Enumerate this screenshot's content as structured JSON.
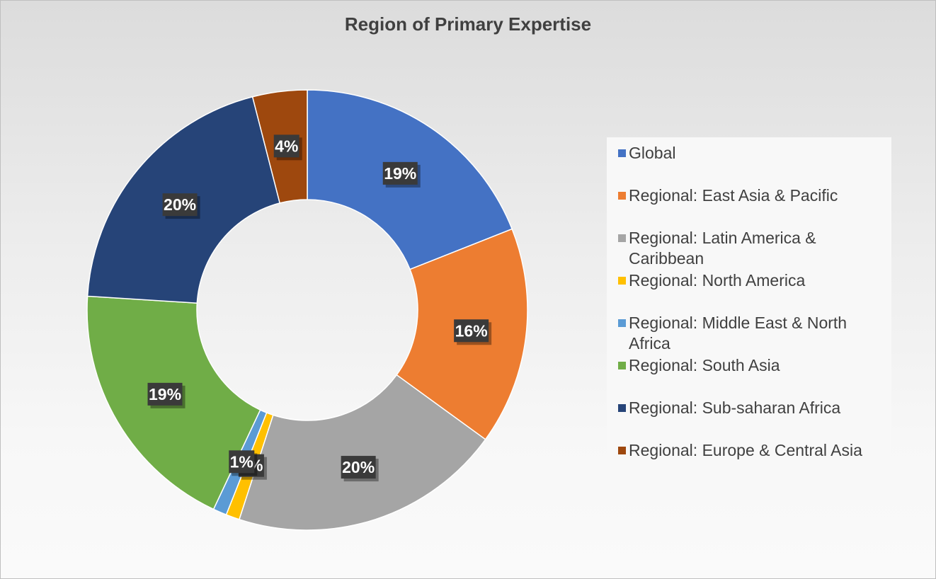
{
  "chart_data": {
    "type": "pie",
    "title": "Region of Primary Expertise",
    "donut": true,
    "legend_position": "right",
    "slices": [
      {
        "label": "Global",
        "value": 19,
        "display": "19%",
        "color": "#4472C4"
      },
      {
        "label": "Regional: East Asia & Pacific",
        "value": 16,
        "display": "16%",
        "color": "#ED7D31"
      },
      {
        "label": "Regional: Latin America & Caribbean",
        "value": 20,
        "display": "20%",
        "color": "#A5A5A5"
      },
      {
        "label": "Regional: North America",
        "value": 1,
        "display": "1%",
        "color": "#FFC000"
      },
      {
        "label": "Regional: Middle East & North Africa",
        "value": 1,
        "display": "1%",
        "color": "#5B9BD5"
      },
      {
        "label": "Regional: South Asia",
        "value": 19,
        "display": "19%",
        "color": "#70AD47"
      },
      {
        "label": "Regional: Sub-saharan Africa",
        "value": 20,
        "display": "20%",
        "color": "#264478"
      },
      {
        "label": "Regional: Europe & Central Asia",
        "value": 4,
        "display": "4%",
        "color": "#9E480E"
      }
    ]
  }
}
